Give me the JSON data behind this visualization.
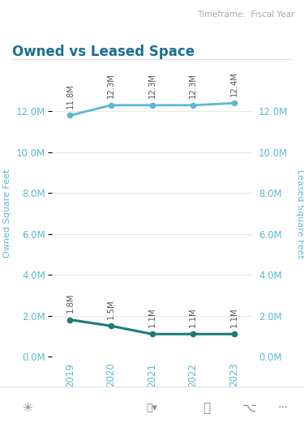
{
  "title": "Owned vs Leased Space",
  "timeframe_label": "Timeframe:  Fiscal Year",
  "years": [
    2019,
    2020,
    2021,
    2022,
    2023
  ],
  "owned_values": [
    11800000,
    12300000,
    12300000,
    12300000,
    12400000
  ],
  "leased_values": [
    1800000,
    1500000,
    1100000,
    1100000,
    1100000
  ],
  "owned_labels": [
    "11.8M",
    "12.3M",
    "12.3M",
    "12.3M",
    "12.4M"
  ],
  "leased_labels": [
    "1.8M",
    "1.5M",
    "1.1M",
    "1.1M",
    "1.1M"
  ],
  "owned_color": "#5BB8D4",
  "leased_color": "#1B7B7B",
  "left_ylabel": "Owned Square Feet",
  "right_ylabel": "Leased Square Feet",
  "left_legend_color": "#5BB8D4",
  "right_legend_color": "#1B7B7B",
  "ylim": [
    0,
    14000000
  ],
  "yticks": [
    0,
    2000000,
    4000000,
    6000000,
    8000000,
    10000000,
    12000000
  ],
  "ytick_labels": [
    "0.0M",
    "2.0M",
    "4.0M",
    "6.0M",
    "8.0M",
    "10.0M",
    "12.0M"
  ],
  "axis_color": "#5BB8D4",
  "label_color": "#888888",
  "bg_color": "#ffffff",
  "grid_color": "#e8e8e8",
  "title_color": "#1a7090",
  "label_fontsize": 8,
  "tick_fontsize": 8.5,
  "title_fontsize": 12,
  "annotation_color": "#555555"
}
